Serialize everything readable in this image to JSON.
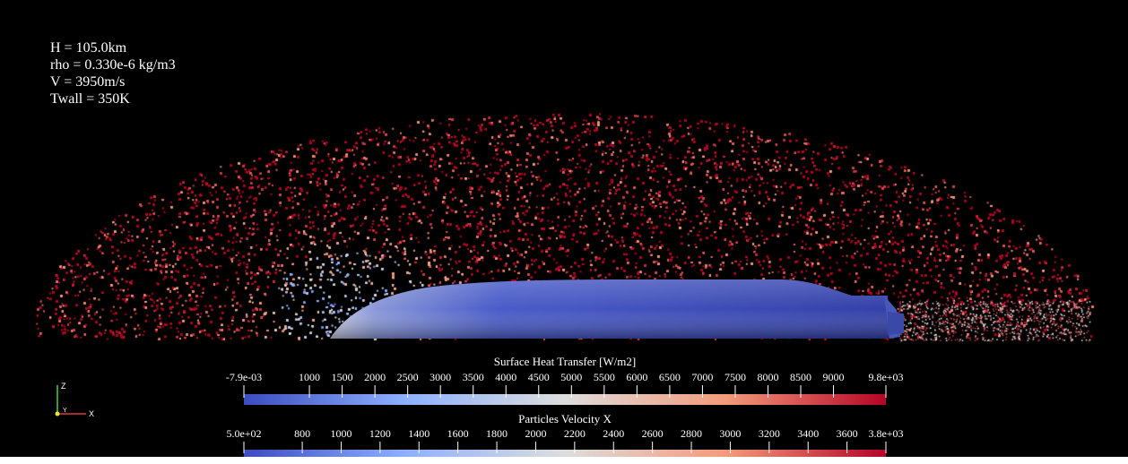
{
  "parameters": [
    {
      "text": "H = 105.0km"
    },
    {
      "text": "rho = 0.330e-6 kg/m3"
    },
    {
      "text": "V = 3950m/s"
    },
    {
      "text": "Twall = 350K"
    }
  ],
  "colorbars": [
    {
      "title": "Surface Heat Transfer [W/m2]",
      "range": [
        -0.0079,
        9800
      ],
      "ticks": [
        "-7.9e-03",
        "1000",
        "1500",
        "2000",
        "2500",
        "3000",
        "3500",
        "4000",
        "4500",
        "5000",
        "5500",
        "6000",
        "6500",
        "7000",
        "7500",
        "8000",
        "8500",
        "9000",
        "9.8e+03"
      ],
      "tick_values": [
        -0.0079,
        1000,
        1500,
        2000,
        2500,
        3000,
        3500,
        4000,
        4500,
        5000,
        5500,
        6000,
        6500,
        7000,
        7500,
        8000,
        8500,
        9000,
        9800
      ]
    },
    {
      "title": "Particles Velocity X",
      "range": [
        500,
        3800
      ],
      "ticks": [
        "5.0e+02",
        "800",
        "1000",
        "1200",
        "1400",
        "1600",
        "1800",
        "2000",
        "2200",
        "2400",
        "2600",
        "2800",
        "3000",
        "3200",
        "3400",
        "3600",
        "3.8e+03"
      ],
      "tick_values": [
        500,
        800,
        1000,
        1200,
        1400,
        1600,
        1800,
        2000,
        2200,
        2400,
        2600,
        2800,
        3000,
        3200,
        3400,
        3600,
        3800
      ]
    }
  ],
  "axes": {
    "z_label": "Z",
    "y_label": "Y",
    "x_label": "X"
  },
  "colormap": {
    "low": "#3b4cc0",
    "mid": "#dddddd",
    "high": "#b40426"
  },
  "background": "#000000"
}
